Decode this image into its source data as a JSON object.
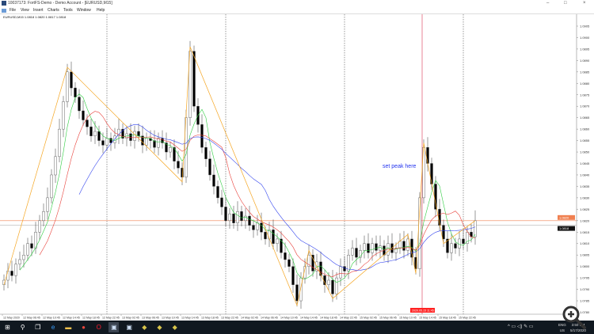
{
  "window": {
    "title": "10037173: FortFS-Demo - Demo Account - [EURUSD,M15]",
    "controls": [
      "–",
      "□",
      "×"
    ]
  },
  "menu": [
    "File",
    "View",
    "Insert",
    "Charts",
    "Tools",
    "Window",
    "Help"
  ],
  "symbol_info": "EURUSD,M15  1.0818 1.0820 1.0817 1.0818",
  "annotation": "set peak here",
  "colors": {
    "bull": "#ffffff",
    "bear": "#000000",
    "candle_outline": "#444444",
    "ma_fast": "#2ecc40",
    "ma_mid": "#e8403a",
    "ma_slow": "#3344ee",
    "zigzag": "#f5a623",
    "ask_line": "#f08050",
    "bid_line": "#c0c0c0",
    "crosshair": "#e0506a",
    "annotation": "#2233ee"
  },
  "chart_data": {
    "type": "candlestick",
    "symbol": "EURUSD",
    "timeframe": "M15",
    "ylim": [
      1.0772,
      1.0908
    ],
    "y_ticks": [
      "1.0905",
      "1.0900",
      "1.0895",
      "1.0890",
      "1.0885",
      "1.0880",
      "1.0875",
      "1.0870",
      "1.0865",
      "1.0860",
      "1.0855",
      "1.0850",
      "1.0845",
      "1.0840",
      "1.0835",
      "1.0830",
      "1.0825",
      "1.0820",
      "1.0815",
      "1.0810",
      "1.0805",
      "1.0800",
      "1.0795",
      "1.0790",
      "1.0785",
      "1.0780",
      "1.0775"
    ],
    "x_ticks": [
      "12 May 2020",
      "12 May 06:45",
      "12 May 10:45",
      "12 May 14:45",
      "12 May 18:45",
      "12 May 22:45",
      "13 May 02:45",
      "13 May 06:45",
      "13 May 10:45",
      "13 May 14:45",
      "13 May 18:45",
      "13 May 22:45",
      "14 May 02:45",
      "14 May 06:45",
      "14 May 10:45",
      "14 May 14:45",
      "14 May 18:45",
      "14 May 22:45",
      "15 May 02:45",
      "15 May 06:45",
      "15 May 10:45",
      "15 May 14:45",
      "15 May 18:45",
      "15 May 22:45"
    ],
    "crosshair_time": "2020.05.15 11:45",
    "ask_price": "1.0820",
    "bid_price": "1.0818",
    "closes": [
      1.0794,
      1.0798,
      1.0796,
      1.0801,
      1.0803,
      1.0805,
      1.081,
      1.0808,
      1.0815,
      1.082,
      1.0824,
      1.083,
      1.084,
      1.0848,
      1.086,
      1.0872,
      1.0885,
      1.0878,
      1.0874,
      1.0868,
      1.0864,
      1.0861,
      1.0857,
      1.0859,
      1.0855,
      1.0853,
      1.0856,
      1.0854,
      1.0857,
      1.086,
      1.0856,
      1.0858,
      1.0855,
      1.0859,
      1.0857,
      1.0853,
      1.0856,
      1.0855,
      1.0852,
      1.0856,
      1.0854,
      1.085,
      1.0852,
      1.0846,
      1.0843,
      1.0839,
      1.0865,
      1.0894,
      1.087,
      1.0862,
      1.0852,
      1.0847,
      1.084,
      1.0835,
      1.083,
      1.0826,
      1.082,
      1.0823,
      1.0819,
      1.0824,
      1.082,
      1.0822,
      1.0818,
      1.0816,
      1.0819,
      1.0815,
      1.0812,
      1.0816,
      1.081,
      1.0812,
      1.0806,
      1.0803,
      1.08,
      1.0792,
      1.0785,
      1.0795,
      1.08,
      1.0805,
      1.0798,
      1.0802,
      1.0796,
      1.0792,
      1.0794,
      1.0788,
      1.0795,
      1.08,
      1.0798,
      1.0805,
      1.0808,
      1.0804,
      1.0807,
      1.081,
      1.0806,
      1.081,
      1.0807,
      1.0809,
      1.0805,
      1.081,
      1.0806,
      1.0808,
      1.0811,
      1.0807,
      1.0812,
      1.0804,
      1.0799,
      1.083,
      1.0852,
      1.0845,
      1.0836,
      1.0825,
      1.0818,
      1.0812,
      1.0806,
      1.081,
      1.0808,
      1.0812,
      1.081,
      1.0815,
      1.0813,
      1.082
    ],
    "zigzag": [
      [
        0,
        1.0792
      ],
      [
        16,
        1.0887
      ],
      [
        45,
        1.0837
      ],
      [
        47,
        1.0896
      ],
      [
        74,
        1.0783
      ],
      [
        77,
        1.0807
      ],
      [
        83,
        1.0786
      ],
      [
        102,
        1.0814
      ],
      [
        104,
        1.0797
      ],
      [
        106,
        1.0854
      ],
      [
        111,
        1.081
      ],
      [
        119,
        1.082
      ]
    ],
    "ma_periods": [
      5,
      10,
      20
    ]
  },
  "taskbar": {
    "icons": [
      "windows-start",
      "search",
      "task-view",
      "internet-explorer",
      "file-explorer",
      "chrome",
      "opera",
      "metatrader",
      "metatrader",
      "app",
      "app",
      "app"
    ],
    "tray": {
      "lang": "ENG",
      "region": "US",
      "time": "3:50 PM",
      "date": "5/17/2020"
    }
  }
}
